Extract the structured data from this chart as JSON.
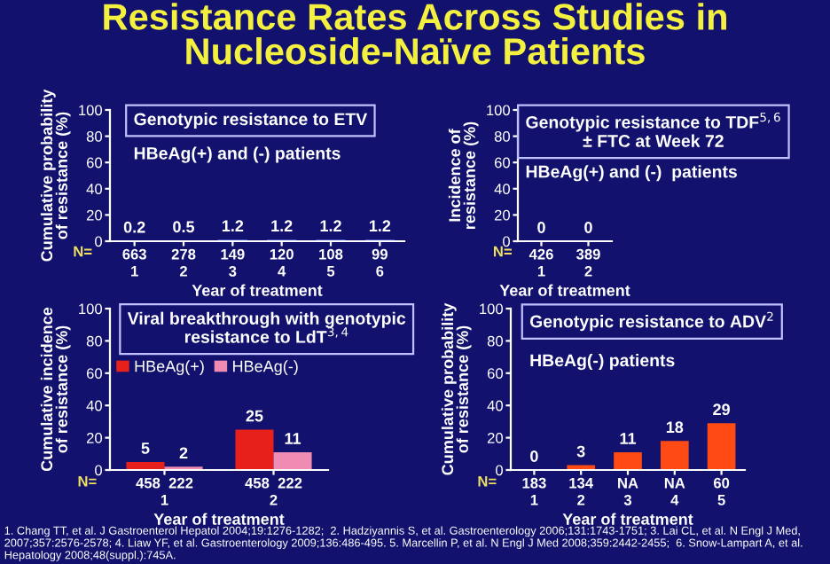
{
  "chart_data": [
    {
      "type": "other",
      "title": "Resistance Rates Across Studies in\nNucleoside-Naïve Patients",
      "annotations": [
        "1. Chang TT, et al. J Gastroenterol Hepatol 2004;19:1276-1282;  2. Hadziyannis S, et al. Gastroenterology 2006;131:1743-1751; 3. Lai CL, et al. N Engl J Med, 2007;357:2576-2578; 4. Liaw YF, et al. Gastroenterology 2009;136:486-495. 5. Marcellin P, et al. N Engl J Med 2008;359:2442-2455;  6. Snow-Lampart A, et al. Hepatology 2008;48(suppl.):745A."
      ]
    },
    {
      "type": "bar",
      "title": "Genotypic resistance to ETV",
      "subtitle": "HBeAg(+) and (-) patients",
      "xlabel": "Year of treatment",
      "ylabel": "Cumulative probability\nof resistance (%)",
      "categories": [
        "663\n1",
        "278\n2",
        "149\n3",
        "120\n4",
        "108\n5",
        "99\n6"
      ],
      "values": [
        0.2,
        0.5,
        1.2,
        1.2,
        1.2,
        1.2
      ],
      "color": "#4a6ae0",
      "data_labels": true,
      "ylim": [
        0,
        100
      ],
      "yticks": [
        0,
        20,
        40,
        60,
        80,
        100
      ],
      "annotations": [
        "N="
      ]
    },
    {
      "type": "bar",
      "title": "Genotypic resistance to TDF$^{5,6}$\n± FTC at Week 72",
      "subtitle": "HBeAg(+) and (-)  patients",
      "xlabel": "Year of treatment",
      "ylabel": "Incidence of\nresistance (%)",
      "categories": [
        "426\n1",
        "389\n2"
      ],
      "values": [
        0,
        0
      ],
      "color": "#4a6ae0",
      "data_labels": true,
      "ylim": [
        0,
        100
      ],
      "yticks": [
        0,
        20,
        40,
        60,
        80,
        100
      ],
      "annotations": [
        "N="
      ]
    },
    {
      "type": "bar",
      "title": "Viral breakthrough with genotypic\nresistance to LdT$^{3,4}$",
      "xlabel": "Year of treatment",
      "ylabel": "Cumulative incidence\nof resistance (%)",
      "categories": [
        "458  222\n1",
        "458  222\n2"
      ],
      "series": [
        {
          "name": "HBeAg(+)",
          "color": "#e8201c",
          "values": [
            5,
            25
          ]
        },
        {
          "name": "HBeAg(-)",
          "color": "#f08cb4",
          "values": [
            2,
            11
          ]
        }
      ],
      "legend": "top left",
      "data_labels": true,
      "ylim": [
        0,
        100
      ],
      "yticks": [
        0,
        20,
        40,
        60,
        80,
        100
      ],
      "annotations": [
        "N="
      ]
    },
    {
      "type": "bar",
      "title": "Genotypic resistance to ADV$^{2}$",
      "subtitle": "HBeAg(-) patients",
      "xlabel": "Year of treatment",
      "ylabel": "Cumulative probability\nof resistance (%)",
      "categories": [
        "183\n1",
        "134\n2",
        "NA\n3",
        "NA\n4",
        "60\n5"
      ],
      "values": [
        0,
        3,
        11,
        18,
        29
      ],
      "color": "#ff4a14",
      "data_labels": true,
      "ylim": [
        0,
        100
      ],
      "yticks": [
        0,
        20,
        40,
        60,
        80,
        100
      ],
      "annotations": [
        "N="
      ]
    }
  ]
}
